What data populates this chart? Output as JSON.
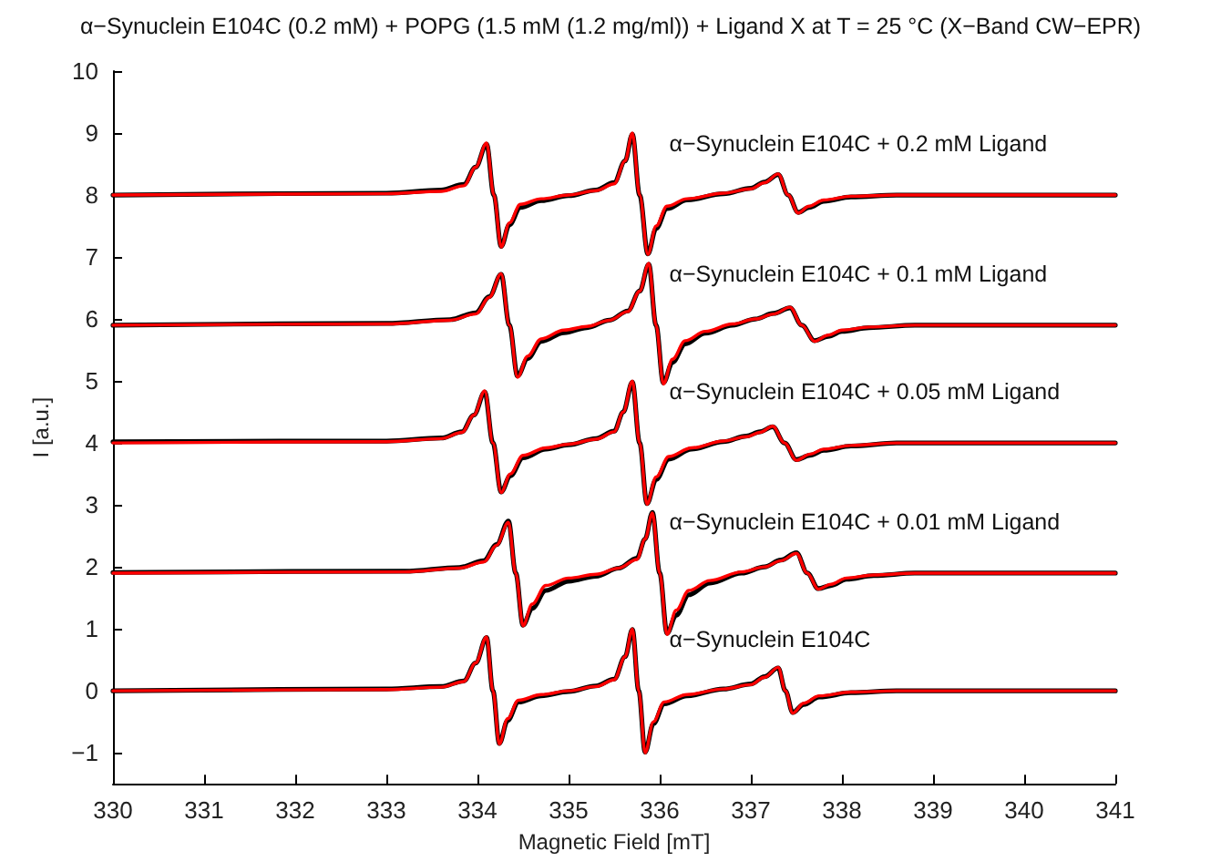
{
  "chart_data": {
    "type": "line",
    "title": "α−Synuclein E104C (0.2 mM) + POPG (1.5 mM (1.2 mg/ml)) + Ligand X at T = 25 °C (X−Band CW−EPR)",
    "xlabel": "Magnetic Field [mT]",
    "ylabel": "I [a.u.]",
    "xlim": [
      330,
      341
    ],
    "xticks": [
      330,
      331,
      332,
      333,
      334,
      335,
      336,
      337,
      338,
      339,
      340,
      341
    ],
    "ylim": [
      -1.5,
      10
    ],
    "yticks": [
      {
        "value": -1,
        "label": "−1"
      },
      0,
      1,
      2,
      3,
      4,
      5,
      6,
      7,
      8,
      9,
      10
    ],
    "line_style": "solid",
    "annotations": [
      "α−Synuclein E104C + 0.2 mM Ligand",
      "α−Synuclein E104C + 0.1 mM Ligand",
      "α−Synuclein E104C + 0.05 mM Ligand",
      "α−Synuclein E104C + 0.01 mM Ligand",
      "α−Synuclein E104C"
    ],
    "series": [
      {
        "color": "#000000",
        "x": [
          330,
          333.0,
          333.6,
          333.85,
          333.98,
          334.1,
          334.18,
          334.26,
          334.35,
          334.47,
          334.7,
          335.0,
          335.3,
          335.5,
          335.62,
          335.7,
          335.78,
          335.87,
          335.96,
          336.08,
          336.3,
          336.7,
          337.0,
          337.15,
          337.3,
          337.41,
          337.52,
          337.64,
          337.8,
          338.1,
          338.6,
          341
        ],
        "values": [
          8.0,
          8.03,
          8.08,
          8.17,
          8.45,
          8.82,
          8.0,
          7.17,
          7.52,
          7.8,
          7.91,
          7.99,
          8.08,
          8.2,
          8.55,
          8.98,
          8.0,
          7.05,
          7.46,
          7.78,
          7.92,
          8.02,
          8.11,
          8.21,
          8.33,
          8.0,
          7.72,
          7.8,
          7.9,
          7.97,
          8.0,
          8.0
        ]
      },
      {
        "color": "#000000",
        "x": [
          330,
          333.0,
          333.7,
          333.98,
          334.13,
          334.26,
          334.35,
          334.44,
          334.55,
          334.7,
          334.95,
          335.2,
          335.45,
          335.65,
          335.78,
          335.88,
          335.96,
          336.04,
          336.14,
          336.28,
          336.5,
          336.8,
          337.05,
          337.25,
          337.43,
          337.56,
          337.7,
          337.85,
          338.0,
          338.3,
          338.8,
          341
        ],
        "values": [
          5.9,
          5.93,
          5.99,
          6.1,
          6.36,
          6.72,
          5.9,
          5.08,
          5.36,
          5.64,
          5.78,
          5.86,
          5.98,
          6.13,
          6.45,
          6.88,
          5.9,
          4.97,
          5.3,
          5.6,
          5.77,
          5.9,
          6.0,
          6.09,
          6.18,
          5.9,
          5.65,
          5.72,
          5.8,
          5.86,
          5.9,
          5.9
        ]
      },
      {
        "color": "#000000",
        "x": [
          330,
          333.0,
          333.6,
          333.83,
          333.96,
          334.08,
          334.17,
          334.26,
          334.36,
          334.5,
          334.75,
          335.0,
          335.3,
          335.5,
          335.6,
          335.7,
          335.78,
          335.86,
          335.96,
          336.1,
          336.35,
          336.7,
          336.95,
          337.1,
          337.24,
          337.37,
          337.5,
          337.65,
          337.8,
          338.1,
          338.6,
          341
        ],
        "values": [
          4.02,
          4.03,
          4.08,
          4.18,
          4.45,
          4.82,
          4.0,
          3.21,
          3.47,
          3.76,
          3.9,
          3.97,
          4.07,
          4.19,
          4.5,
          4.98,
          4.0,
          3.02,
          3.41,
          3.74,
          3.9,
          4.02,
          4.11,
          4.18,
          4.26,
          4.0,
          3.73,
          3.8,
          3.88,
          3.95,
          4.0,
          4.0
        ]
      },
      {
        "color": "#000000",
        "x": [
          330,
          333.2,
          333.8,
          334.07,
          334.21,
          334.34,
          334.42,
          334.5,
          334.6,
          334.75,
          335.0,
          335.3,
          335.55,
          335.75,
          335.84,
          335.92,
          336.0,
          336.08,
          336.18,
          336.32,
          336.55,
          336.9,
          337.15,
          337.33,
          337.5,
          337.62,
          337.74,
          337.88,
          338.05,
          338.35,
          338.8,
          341
        ],
        "values": [
          1.91,
          1.93,
          1.99,
          2.1,
          2.36,
          2.74,
          1.9,
          1.06,
          1.33,
          1.62,
          1.77,
          1.85,
          1.98,
          2.14,
          2.45,
          2.88,
          1.9,
          0.93,
          1.22,
          1.55,
          1.74,
          1.9,
          2.0,
          2.11,
          2.23,
          1.9,
          1.65,
          1.7,
          1.8,
          1.86,
          1.9,
          1.9
        ]
      },
      {
        "color": "#000000",
        "x": [
          330,
          333.0,
          333.6,
          333.85,
          333.98,
          334.1,
          334.17,
          334.24,
          334.33,
          334.45,
          334.7,
          335.0,
          335.3,
          335.5,
          335.62,
          335.7,
          335.77,
          335.84,
          335.93,
          336.05,
          336.3,
          336.7,
          337.0,
          337.15,
          337.3,
          337.38,
          337.46,
          337.58,
          337.75,
          338.1,
          338.6,
          341
        ],
        "values": [
          0,
          0.03,
          0.07,
          0.16,
          0.45,
          0.86,
          0,
          -0.85,
          -0.48,
          -0.18,
          -0.08,
          -0.01,
          0.08,
          0.19,
          0.55,
          0.99,
          0,
          -0.99,
          -0.53,
          -0.21,
          -0.08,
          0.03,
          0.11,
          0.23,
          0.37,
          0,
          -0.35,
          -0.22,
          -0.1,
          -0.03,
          0,
          0
        ]
      },
      {
        "color": "#ff0000",
        "x": [
          330,
          333.0,
          333.6,
          333.85,
          333.98,
          334.1,
          334.18,
          334.26,
          334.35,
          334.47,
          334.7,
          335.0,
          335.3,
          335.5,
          335.62,
          335.7,
          335.78,
          335.87,
          335.96,
          336.08,
          336.3,
          336.7,
          337.0,
          337.15,
          337.3,
          337.41,
          337.52,
          337.64,
          337.8,
          338.1,
          338.6,
          341
        ],
        "values": [
          8.0,
          8.02,
          8.06,
          8.15,
          8.45,
          8.84,
          8.0,
          7.16,
          7.55,
          7.85,
          7.94,
          8.0,
          8.07,
          8.18,
          8.55,
          9.0,
          8.0,
          7.04,
          7.5,
          7.82,
          7.94,
          8.03,
          8.1,
          8.2,
          8.34,
          8.0,
          7.71,
          7.82,
          7.92,
          7.98,
          8.0,
          8.0
        ]
      },
      {
        "color": "#ff0000",
        "x": [
          330,
          333.0,
          333.7,
          333.98,
          334.13,
          334.26,
          334.35,
          334.44,
          334.55,
          334.7,
          334.95,
          335.2,
          335.45,
          335.65,
          335.78,
          335.88,
          335.96,
          336.04,
          336.14,
          336.28,
          336.5,
          336.8,
          337.05,
          337.25,
          337.43,
          337.56,
          337.7,
          337.85,
          338.0,
          338.3,
          338.8,
          341
        ],
        "values": [
          5.9,
          5.92,
          5.98,
          6.08,
          6.35,
          6.73,
          5.9,
          5.06,
          5.4,
          5.68,
          5.82,
          5.88,
          5.98,
          6.12,
          6.45,
          6.9,
          5.9,
          4.95,
          5.35,
          5.65,
          5.8,
          5.92,
          6.0,
          6.08,
          6.19,
          5.9,
          5.64,
          5.74,
          5.82,
          5.87,
          5.9,
          5.9
        ]
      },
      {
        "color": "#ff0000",
        "x": [
          330,
          333.0,
          333.6,
          333.83,
          333.96,
          334.08,
          334.17,
          334.26,
          334.36,
          334.5,
          334.75,
          335.0,
          335.3,
          335.5,
          335.6,
          335.7,
          335.78,
          335.86,
          335.96,
          336.1,
          336.35,
          336.7,
          336.95,
          337.1,
          337.24,
          337.37,
          337.5,
          337.65,
          337.8,
          338.1,
          338.6,
          341
        ],
        "values": [
          4.0,
          4.02,
          4.07,
          4.17,
          4.45,
          4.84,
          4.0,
          3.2,
          3.5,
          3.8,
          3.92,
          3.98,
          4.06,
          4.18,
          4.5,
          5.0,
          4.0,
          3.01,
          3.45,
          3.78,
          3.92,
          4.03,
          4.1,
          4.17,
          4.27,
          4.0,
          3.72,
          3.82,
          3.9,
          3.96,
          4.0,
          4.0
        ]
      },
      {
        "color": "#ff0000",
        "x": [
          330,
          333.2,
          333.8,
          334.07,
          334.21,
          334.34,
          334.42,
          334.5,
          334.6,
          334.75,
          335.0,
          335.3,
          335.55,
          335.75,
          335.84,
          335.92,
          336.0,
          336.08,
          336.18,
          336.32,
          336.55,
          336.9,
          337.15,
          337.33,
          337.5,
          337.62,
          337.74,
          337.88,
          338.05,
          338.35,
          338.8,
          341
        ],
        "values": [
          1.9,
          1.92,
          1.98,
          2.08,
          2.35,
          2.72,
          1.9,
          1.05,
          1.4,
          1.7,
          1.82,
          1.88,
          1.98,
          2.12,
          2.45,
          2.87,
          1.9,
          0.91,
          1.3,
          1.62,
          1.78,
          1.92,
          2.0,
          2.1,
          2.22,
          1.9,
          1.64,
          1.72,
          1.82,
          1.87,
          1.9,
          1.9
        ]
      },
      {
        "color": "#ff0000",
        "x": [
          330,
          333.0,
          333.6,
          333.85,
          333.98,
          334.1,
          334.17,
          334.24,
          334.33,
          334.45,
          334.7,
          335.0,
          335.3,
          335.5,
          335.62,
          335.7,
          335.77,
          335.84,
          335.93,
          336.05,
          336.3,
          336.7,
          337.0,
          337.15,
          337.3,
          337.38,
          337.46,
          337.58,
          337.75,
          338.1,
          338.6,
          341
        ],
        "values": [
          0,
          0.02,
          0.06,
          0.15,
          0.45,
          0.87,
          0,
          -0.86,
          -0.45,
          -0.15,
          -0.06,
          0,
          0.07,
          0.18,
          0.55,
          1.0,
          0,
          -1.0,
          -0.5,
          -0.18,
          -0.06,
          0.03,
          0.1,
          0.22,
          0.38,
          0,
          -0.36,
          -0.2,
          -0.08,
          -0.02,
          0,
          0
        ]
      }
    ]
  }
}
